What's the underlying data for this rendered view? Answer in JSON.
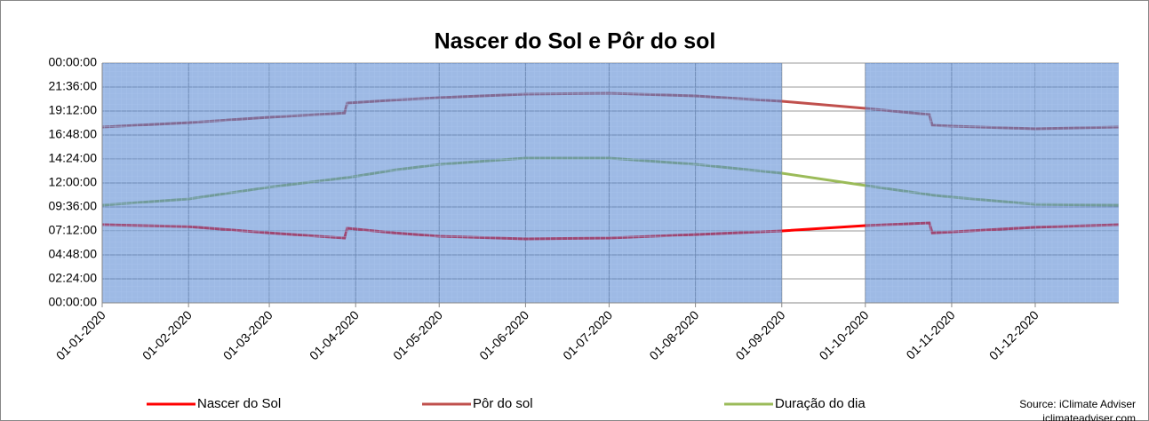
{
  "chart_data": {
    "type": "line",
    "title": "Nascer do Sol e Pôr do sol",
    "x": [
      "01-01-2020",
      "01-02-2020",
      "01-03-2020",
      "28-03-2020",
      "29-03-2020",
      "15-04-2020",
      "01-05-2020",
      "01-06-2020",
      "01-07-2020",
      "01-08-2020",
      "01-09-2020",
      "01-10-2020",
      "24-10-2020",
      "25-10-2020",
      "01-11-2020",
      "01-12-2020",
      "31-12-2020"
    ],
    "series": [
      {
        "name": "Nascer do Sol",
        "color": "#ff0000",
        "values": [
          7.82,
          7.64,
          7.0,
          6.49,
          7.47,
          7.0,
          6.67,
          6.4,
          6.49,
          6.84,
          7.2,
          7.73,
          8.0,
          7.0,
          7.1,
          7.56,
          7.82
        ]
      },
      {
        "name": "Pôr do sol",
        "color": "#c0504d",
        "values": [
          17.6,
          18.04,
          18.58,
          19.0,
          20.0,
          20.3,
          20.53,
          20.89,
          20.98,
          20.71,
          20.18,
          19.47,
          18.84,
          17.78,
          17.69,
          17.42,
          17.6
        ]
      },
      {
        "name": "Duração do dia",
        "color": "#9bbb59",
        "values": [
          9.78,
          10.4,
          11.58,
          12.51,
          12.53,
          13.3,
          13.86,
          14.49,
          14.49,
          13.87,
          12.98,
          11.74,
          10.84,
          10.78,
          10.59,
          9.86,
          9.78
        ]
      }
    ],
    "xlim": [
      "01-01-2020",
      "31-12-2020"
    ],
    "xticks": [
      "01-01-2020",
      "01-02-2020",
      "01-03-2020",
      "01-04-2020",
      "01-05-2020",
      "01-06-2020",
      "01-07-2020",
      "01-08-2020",
      "01-09-2020",
      "01-10-2020",
      "01-11-2020",
      "01-12-2020"
    ],
    "ylim": [
      0,
      24
    ],
    "yticks": [
      {
        "value": 0,
        "label": "00:00:00"
      },
      {
        "value": 2.4,
        "label": "02:24:00"
      },
      {
        "value": 4.8,
        "label": "04:48:00"
      },
      {
        "value": 7.2,
        "label": "07:12:00"
      },
      {
        "value": 9.6,
        "label": "09:36:00"
      },
      {
        "value": 12,
        "label": "12:00:00"
      },
      {
        "value": 14.4,
        "label": "14:24:00"
      },
      {
        "value": 16.8,
        "label": "16:48:00"
      },
      {
        "value": 19.2,
        "label": "19:12:00"
      },
      {
        "value": 21.6,
        "label": "21:36:00"
      },
      {
        "value": 24,
        "label": "00:00:00"
      }
    ],
    "shaded_ranges": [
      [
        "01-01-2020",
        "01-09-2020"
      ],
      [
        "01-10-2020",
        "31-12-2020"
      ]
    ],
    "grid": true,
    "legend": "bottom",
    "source": "Source: iClimate Adviser",
    "website": "iclimateadviser.com"
  }
}
